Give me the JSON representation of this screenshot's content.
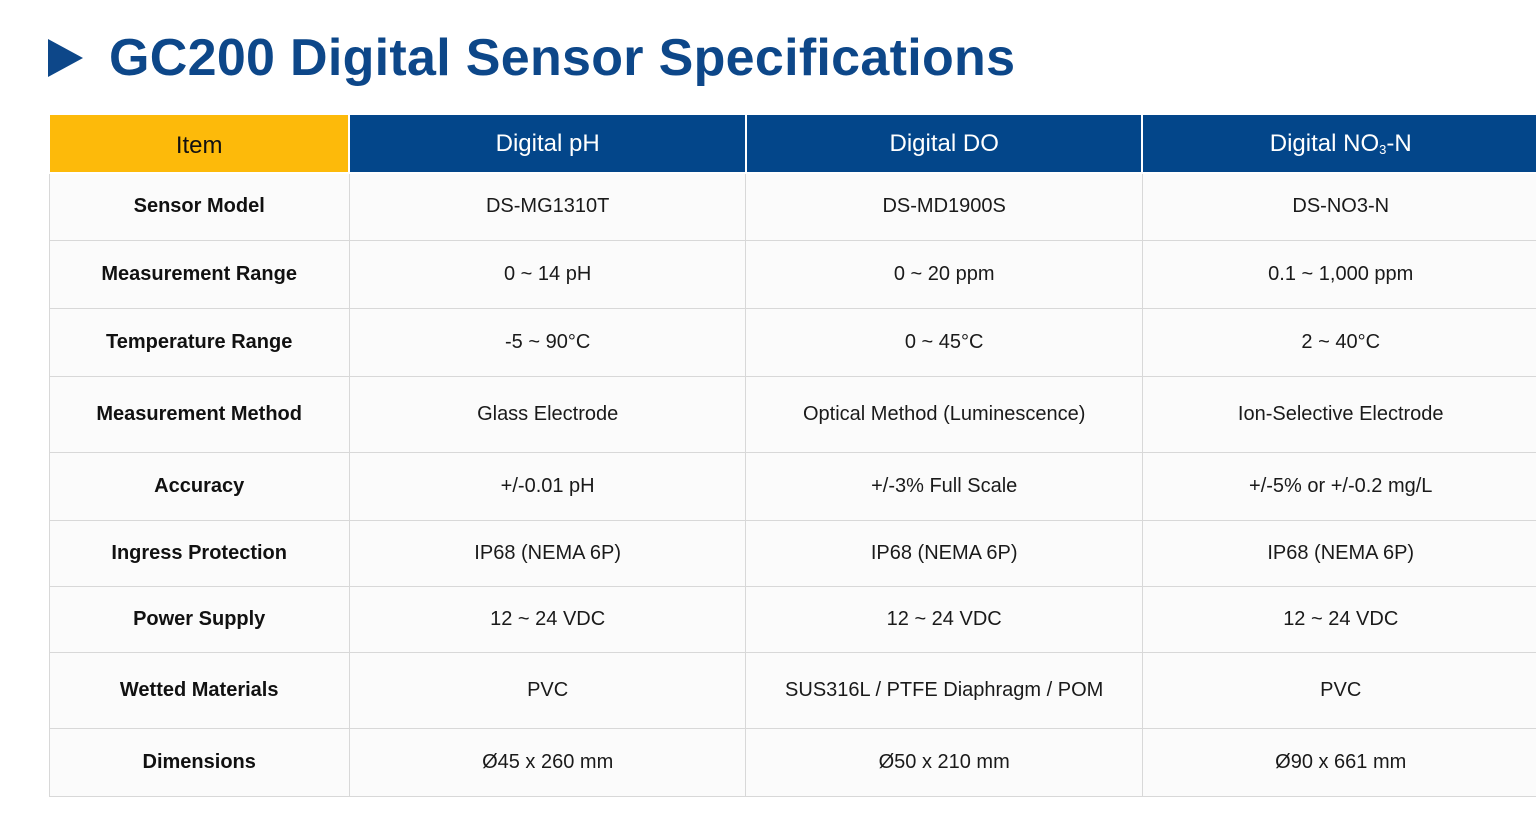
{
  "title": "GC200 Digital Sensor Specifications",
  "colors": {
    "title": "#0d4789",
    "header_bg": "#03468a",
    "item_header_bg": "#fdba0a"
  },
  "header": {
    "item": "Item",
    "columns": [
      {
        "name": "Digital pH"
      },
      {
        "name": "Digital DO"
      },
      {
        "name_prefix": "Digital NO",
        "name_sub": "3",
        "name_suffix": "-N"
      }
    ]
  },
  "rows": [
    {
      "label": "Sensor Model",
      "values": [
        "DS-MG1310T",
        "DS-MD1900S",
        "DS-NO3-N"
      ]
    },
    {
      "label": "Measurement Range",
      "values": [
        "0 ~ 14 pH",
        "0 ~ 20 ppm",
        "0.1 ~ 1,000 ppm"
      ]
    },
    {
      "label": "Temperature Range",
      "values": [
        "-5 ~ 90°C",
        "0 ~ 45°C",
        "2 ~ 40°C"
      ]
    },
    {
      "label": "Measurement Method",
      "values": [
        "Glass Electrode",
        "Optical Method (Luminescence)",
        "Ion-Selective Electrode"
      ]
    },
    {
      "label": "Accuracy",
      "values": [
        "+/-0.01 pH",
        "+/-3% Full Scale",
        "+/-5% or +/-0.2 mg/L"
      ]
    },
    {
      "label": "Ingress Protection",
      "values": [
        "IP68 (NEMA 6P)",
        "IP68 (NEMA 6P)",
        "IP68 (NEMA 6P)"
      ]
    },
    {
      "label": "Power Supply",
      "values": [
        "12 ~ 24 VDC",
        "12 ~ 24 VDC",
        "12 ~ 24 VDC"
      ]
    },
    {
      "label": "Wetted Materials",
      "values": [
        "PVC",
        "SUS316L / PTFE Diaphragm / POM",
        "PVC"
      ]
    },
    {
      "label": "Dimensions",
      "values": [
        "Ø45 x 260 mm",
        "Ø50 x 210 mm",
        "Ø90 x 661 mm"
      ]
    }
  ]
}
